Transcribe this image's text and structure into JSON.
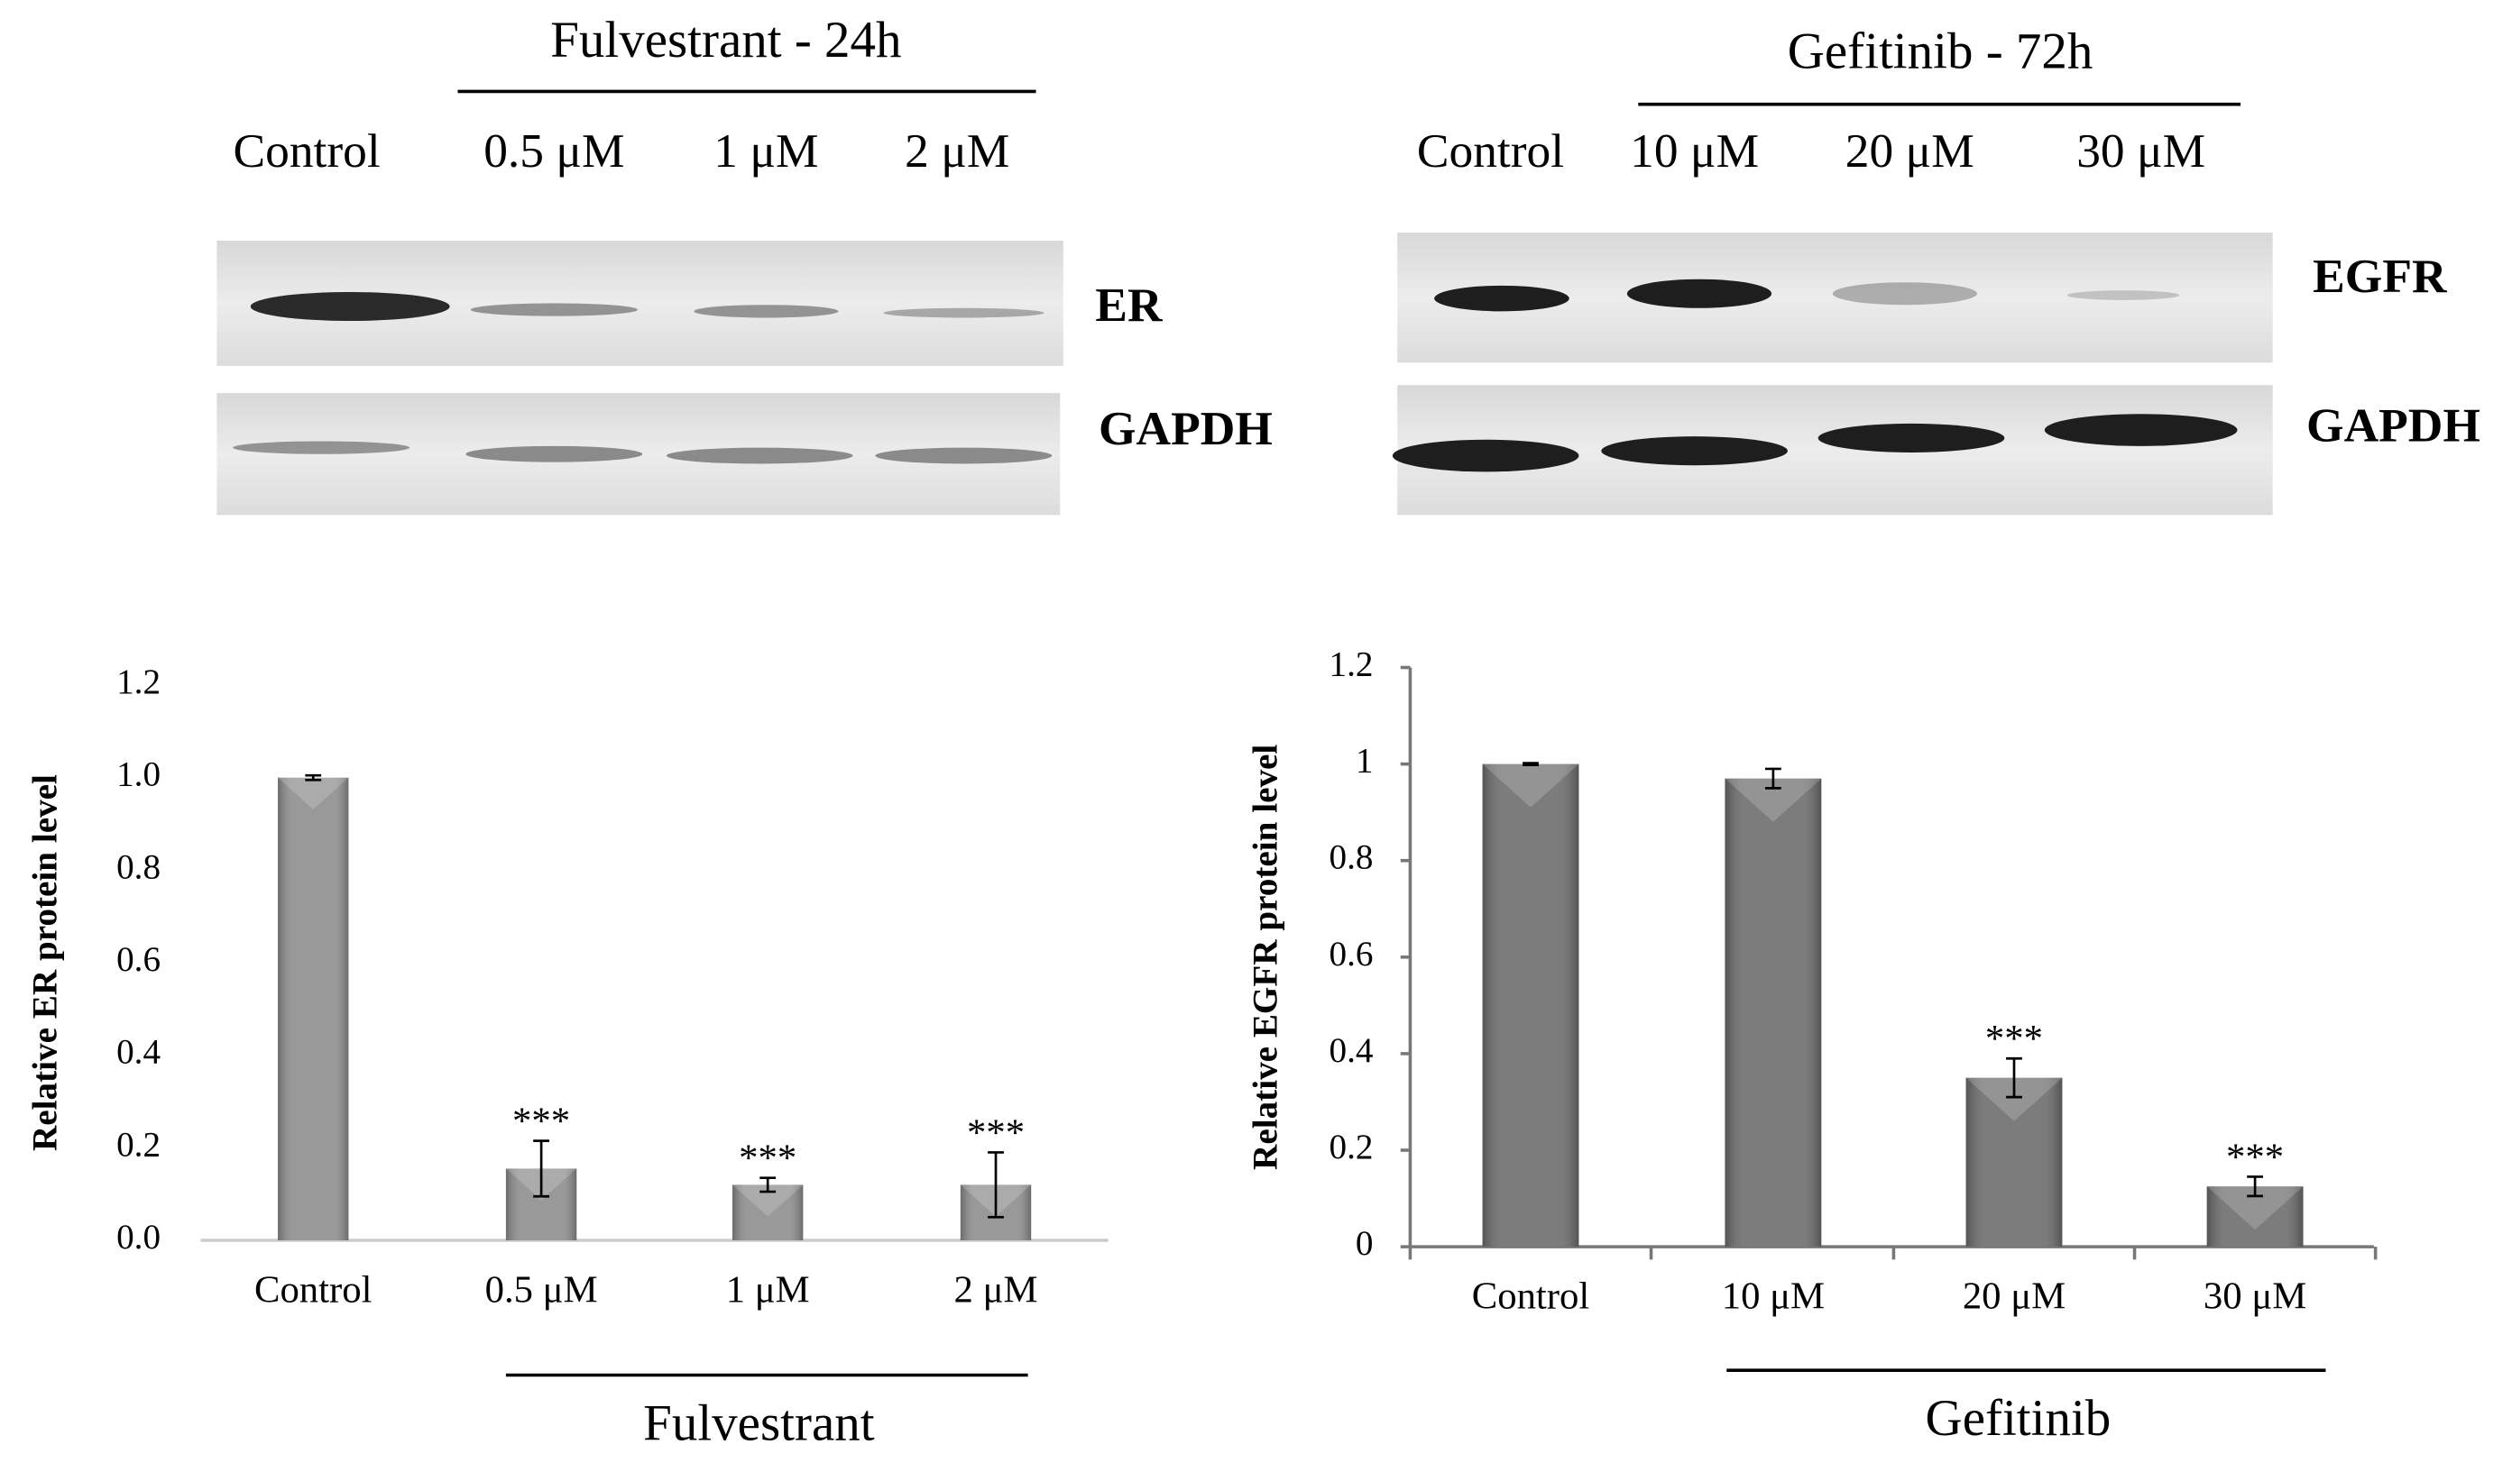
{
  "blots": [
    {
      "title": "Fulvestrant  - 24h",
      "lanes": [
        "Control",
        "0.5 μM",
        "1 μM",
        "2 μM"
      ],
      "proteins": [
        "ER",
        "GAPDH"
      ]
    },
    {
      "title": "Gefitinib - 72h",
      "lanes": [
        "Control",
        "10 μM",
        "20 μM",
        "30 μM"
      ],
      "proteins": [
        "EGFR",
        "GAPDH"
      ]
    }
  ],
  "chart_data": [
    {
      "type": "bar",
      "y_label": "Relative ER protein level",
      "categories": [
        "Control",
        "0.5 μM",
        "1 μM",
        "2 μM"
      ],
      "values": [
        1.0,
        0.155,
        0.12,
        0.12
      ],
      "errors": [
        0.005,
        0.06,
        0.015,
        0.07
      ],
      "annotations": [
        null,
        "***",
        "***",
        "***"
      ],
      "color": "#8e8e8e",
      "ylim": [
        0,
        1.2
      ],
      "yticks": [
        {
          "value": 0,
          "label": "0.0"
        },
        0.2,
        0.4,
        0.6,
        0.8,
        {
          "value": 1,
          "label": "1.0"
        },
        1.2
      ],
      "group_label": "Fulvestrant"
    },
    {
      "type": "bar",
      "y_label": "Relative EGFR protein level",
      "categories": [
        "Control",
        "10 μM",
        "20 μM",
        "30 μM"
      ],
      "values": [
        1.0,
        0.97,
        0.35,
        0.125
      ],
      "errors": [
        0.002,
        0.02,
        0.04,
        0.02
      ],
      "annotations": [
        null,
        null,
        "***",
        "***"
      ],
      "color": "#6e6e6e",
      "ylim": [
        0,
        1.2
      ],
      "yticks": [
        0,
        0.2,
        0.4,
        0.6,
        0.8,
        1,
        1.2
      ],
      "group_label": "Gefitinib"
    }
  ]
}
